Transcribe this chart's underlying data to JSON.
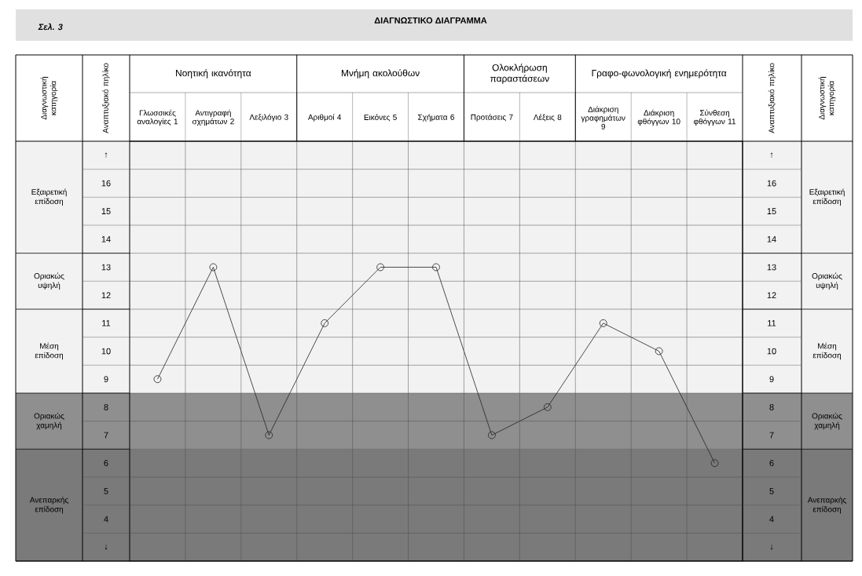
{
  "chart_data": {
    "type": "line",
    "title": "ΔΙΑΓΝΩΣΤΙΚΟ ΔΙΑΓΡΑΜΜΑ",
    "annotations": [
      "Σελ. 3",
      "Νοητική ικανότητα",
      "Μνήμη ακολούθων",
      "Ολοκλήρωση παραστάσεων",
      "Γραφο-φωνολογική ενημερότητα",
      "Διαγνωστική κατηγορία",
      "Αναπτυξιακό πηλίκο",
      "Αναπτυξιακό πηλίκο",
      "Διαγνωστική κατηγορία"
    ],
    "categories": [
      "Γλωσσικές αναλογίες 1",
      "Αντιγραφή σχημάτων 2",
      "Λεξιλόγιο 3",
      "Αριθμοί 4",
      "Εικόνες 5",
      "Σχήματα 6",
      "Προτάσεις 7",
      "Λέξεις 8",
      "Διάκριση γραφημάτων 9",
      "Διάκριση φθόγγων 10",
      "Σύνθεση φθόγγων 11"
    ],
    "series": [
      {
        "color": "#222222",
        "values": [
          9,
          13,
          7,
          11,
          13,
          13,
          7,
          8,
          11,
          10,
          6
        ]
      }
    ],
    "ylim": [
      2.5,
      17.5
    ],
    "yticks": [
      {
        "value": 3,
        "label": "↓"
      },
      4,
      5,
      6,
      7,
      8,
      9,
      10,
      11,
      12,
      13,
      14,
      15,
      16,
      {
        "value": 17,
        "label": "↑"
      }
    ],
    "y2lim": [
      2.5,
      17.5
    ],
    "y2ticks": [
      {
        "value": 3,
        "label": "↓"
      },
      4,
      5,
      6,
      7,
      8,
      9,
      10,
      11,
      12,
      13,
      14,
      15,
      16,
      {
        "value": 17,
        "label": "↑"
      }
    ],
    "bands": [
      {
        "axis": "y",
        "from": 13.5,
        "to": 17.5,
        "label": "Εξαιρετική επίδοση",
        "color": "#f2f2f2"
      },
      {
        "axis": "y",
        "from": 11.5,
        "to": 13.5,
        "label": "Οριακώς υψηλή",
        "color": "#f2f2f2"
      },
      {
        "axis": "y",
        "from": 8.5,
        "to": 11.5,
        "label": "Μέση επίδοση",
        "color": "#f2f2f2"
      },
      {
        "axis": "y",
        "from": 6.5,
        "to": 8.5,
        "label": "Οριακώς χαμηλή",
        "color": "#8f8f8f"
      },
      {
        "axis": "y",
        "from": 2.5,
        "to": 6.5,
        "label": "Ανεπαρκής επίδοση",
        "color": "#7a7a7a"
      }
    ],
    "marker": "circle",
    "grid": true
  }
}
